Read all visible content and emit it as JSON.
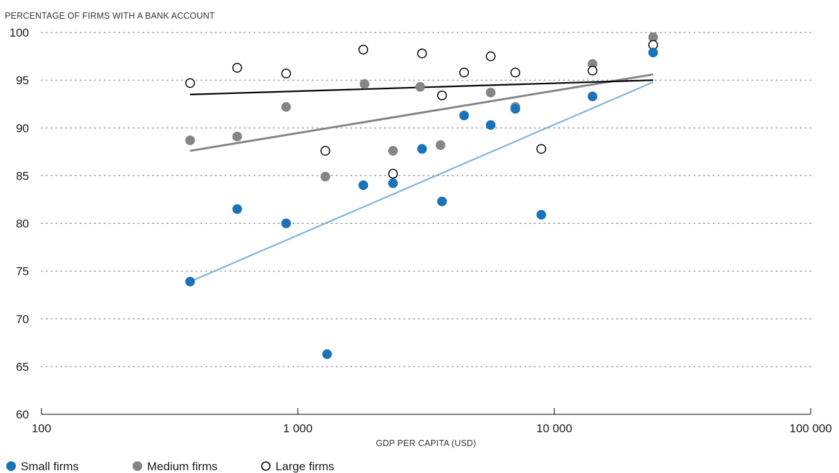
{
  "chart_data": {
    "type": "scatter",
    "title": "",
    "ylabel": "PERCENTAGE OF FIRMS WITH A BANK ACCOUNT",
    "xlabel": "GDP PER CAPITA (USD)",
    "x_scale": "log",
    "xlim": [
      100,
      100000
    ],
    "ylim": [
      60,
      100
    ],
    "x_ticks": [
      100,
      1000,
      10000,
      100000
    ],
    "x_tick_labels": [
      "100",
      "1 000",
      "10 000",
      "100 000"
    ],
    "y_ticks": [
      60,
      65,
      70,
      75,
      80,
      85,
      90,
      95,
      100
    ],
    "y_tick_labels": [
      "60",
      "65",
      "70",
      "75",
      "80",
      "85",
      "90",
      "95",
      "100"
    ],
    "grid": "horizontal-dotted",
    "legend_position": "bottom-left",
    "series": [
      {
        "name": "Small firms",
        "marker": "filled-circle",
        "color": "#1a73b8",
        "points": [
          {
            "x": 380,
            "y": 73.9
          },
          {
            "x": 580,
            "y": 81.5
          },
          {
            "x": 900,
            "y": 80.0
          },
          {
            "x": 1300,
            "y": 66.3
          },
          {
            "x": 1800,
            "y": 84.0
          },
          {
            "x": 2350,
            "y": 84.2
          },
          {
            "x": 3050,
            "y": 87.8
          },
          {
            "x": 3650,
            "y": 82.3
          },
          {
            "x": 4450,
            "y": 91.3
          },
          {
            "x": 5650,
            "y": 90.3
          },
          {
            "x": 7050,
            "y": 92.0
          },
          {
            "x": 8900,
            "y": 80.9
          },
          {
            "x": 14100,
            "y": 93.3
          },
          {
            "x": 24300,
            "y": 97.9
          }
        ],
        "trend": {
          "x": [
            380,
            24300
          ],
          "y": [
            73.9,
            94.8
          ],
          "color": "#7fb3d8"
        }
      },
      {
        "name": "Medium firms",
        "marker": "filled-circle",
        "color": "#858585",
        "points": [
          {
            "x": 380,
            "y": 88.7
          },
          {
            "x": 580,
            "y": 89.1
          },
          {
            "x": 900,
            "y": 92.2
          },
          {
            "x": 1280,
            "y": 84.9
          },
          {
            "x": 1820,
            "y": 94.6
          },
          {
            "x": 2350,
            "y": 87.6
          },
          {
            "x": 3000,
            "y": 94.3
          },
          {
            "x": 3600,
            "y": 88.2
          },
          {
            "x": 5650,
            "y": 93.7
          },
          {
            "x": 7050,
            "y": 92.2
          },
          {
            "x": 14100,
            "y": 96.7
          },
          {
            "x": 24300,
            "y": 99.5
          }
        ],
        "trend": {
          "x": [
            380,
            24300
          ],
          "y": [
            87.6,
            95.6
          ],
          "color": "#858585"
        }
      },
      {
        "name": "Large firms",
        "marker": "open-circle",
        "color": "#000000",
        "points": [
          {
            "x": 380,
            "y": 94.7
          },
          {
            "x": 580,
            "y": 96.3
          },
          {
            "x": 900,
            "y": 95.7
          },
          {
            "x": 1280,
            "y": 87.6
          },
          {
            "x": 1800,
            "y": 98.2
          },
          {
            "x": 2350,
            "y": 85.2
          },
          {
            "x": 3050,
            "y": 97.8
          },
          {
            "x": 3650,
            "y": 93.4
          },
          {
            "x": 4450,
            "y": 95.8
          },
          {
            "x": 5650,
            "y": 97.5
          },
          {
            "x": 7050,
            "y": 95.8
          },
          {
            "x": 8900,
            "y": 87.8
          },
          {
            "x": 14100,
            "y": 96.0
          },
          {
            "x": 24300,
            "y": 98.7
          }
        ],
        "trend": {
          "x": [
            380,
            24300
          ],
          "y": [
            93.5,
            95.0
          ],
          "color": "#000000"
        }
      }
    ]
  }
}
